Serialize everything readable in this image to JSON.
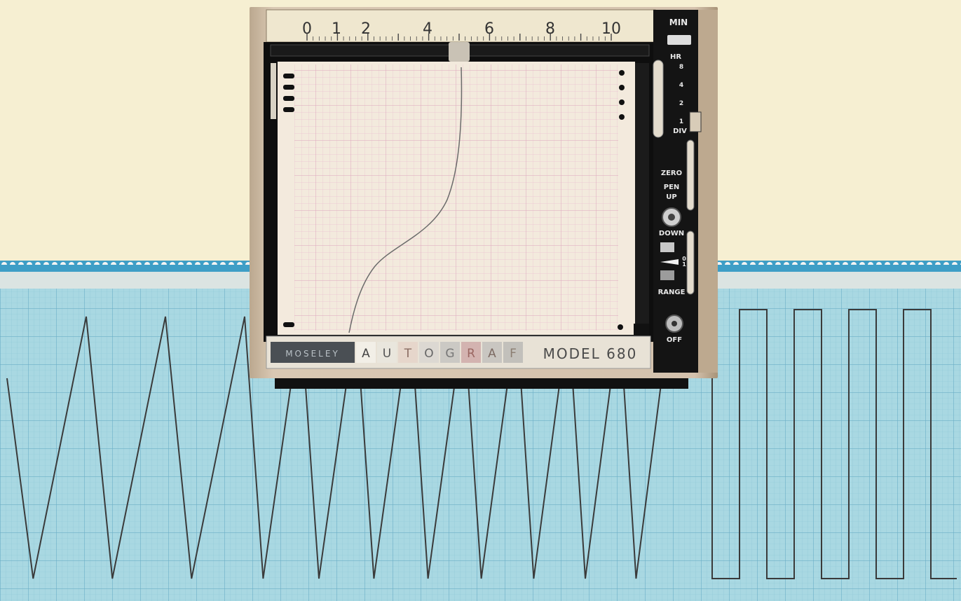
{
  "scale": {
    "labels": [
      "0",
      "1",
      "2",
      "4",
      "6",
      "8",
      "10"
    ]
  },
  "panel": {
    "min": "MIN",
    "hr": "HR",
    "time_values": [
      "8",
      "4",
      "2",
      "1"
    ],
    "div": "DIV",
    "zero": "ZERO",
    "pen": "PEN",
    "up": "UP",
    "down": "DOWN",
    "range_values": [
      "0",
      "1"
    ],
    "range": "RANGE",
    "off": "OFF"
  },
  "nameplate": {
    "brand": "MOSELEY",
    "letters": [
      "A",
      "U",
      "T",
      "O",
      "G",
      "R",
      "A",
      "F"
    ],
    "model": "MODEL 680"
  },
  "waveform": {
    "triangle_cycles": 11,
    "square_cycles": 4
  },
  "colors": {
    "background": "#f6efd2",
    "chart_paper": "#a9d8e2",
    "chart_grid": "#7fbcd0",
    "chart_perforation": "#3e9ec6",
    "recorder_paper": "#f3eadd",
    "recorder_grid": "#e3a9c2",
    "panel": "#141414",
    "chassis": "#cdb9a2"
  }
}
